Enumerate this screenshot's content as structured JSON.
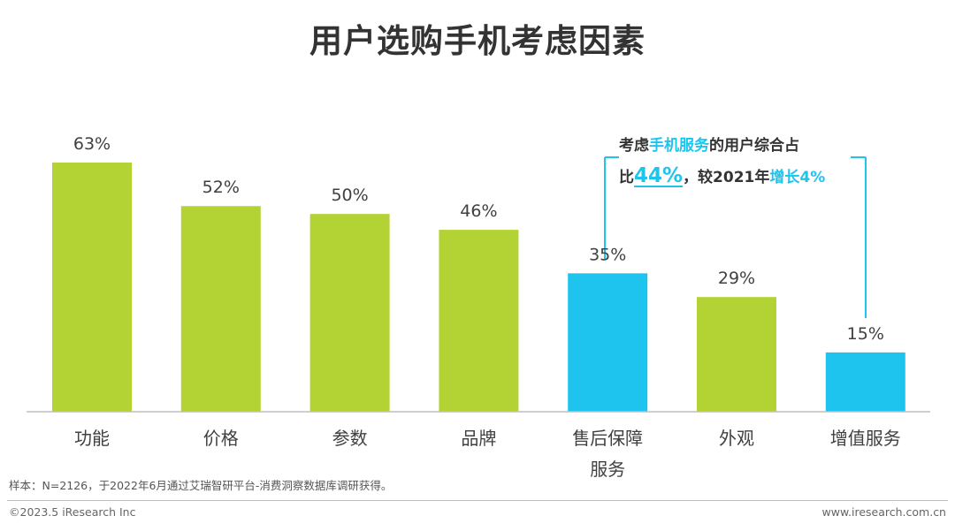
{
  "header": {
    "title": "用户选购手机考虑因素"
  },
  "chart_data": {
    "type": "bar",
    "title": "用户选购手机考虑因素",
    "categories": [
      "功能",
      "价格",
      "参数",
      "品牌",
      "售后保障服务",
      "外观",
      "增值服务"
    ],
    "category_lines": [
      [
        "功能"
      ],
      [
        "价格"
      ],
      [
        "参数"
      ],
      [
        "品牌"
      ],
      [
        "售后保障",
        "服务"
      ],
      [
        "外观"
      ],
      [
        "增值服务"
      ]
    ],
    "values": [
      63,
      52,
      50,
      46,
      35,
      29,
      15
    ],
    "value_labels": [
      "63%",
      "52%",
      "50%",
      "46%",
      "35%",
      "29%",
      "15%"
    ],
    "unit": "%",
    "ylim": [
      0,
      63
    ],
    "grid": false,
    "legend": "none",
    "highlighted_categories": [
      "售后保障服务",
      "增值服务"
    ],
    "colors": {
      "default": "#b3d334",
      "highlight": "#1fc4ee",
      "axis": "#bfbfbf"
    }
  },
  "annotation": {
    "p1": "考虑",
    "p2": "手机服务",
    "p3": "的用户综合占",
    "p4": "比",
    "p5": "44%",
    "p6": "，较2021年",
    "p7": "增长4%"
  },
  "footer": {
    "note": "样本：N=2126，于2022年6月通过艾瑞智研平台-消费洞察数据库调研获得。",
    "copyright": "©2023.5 iResearch Inc",
    "website": "www.iresearch.com.cn"
  }
}
